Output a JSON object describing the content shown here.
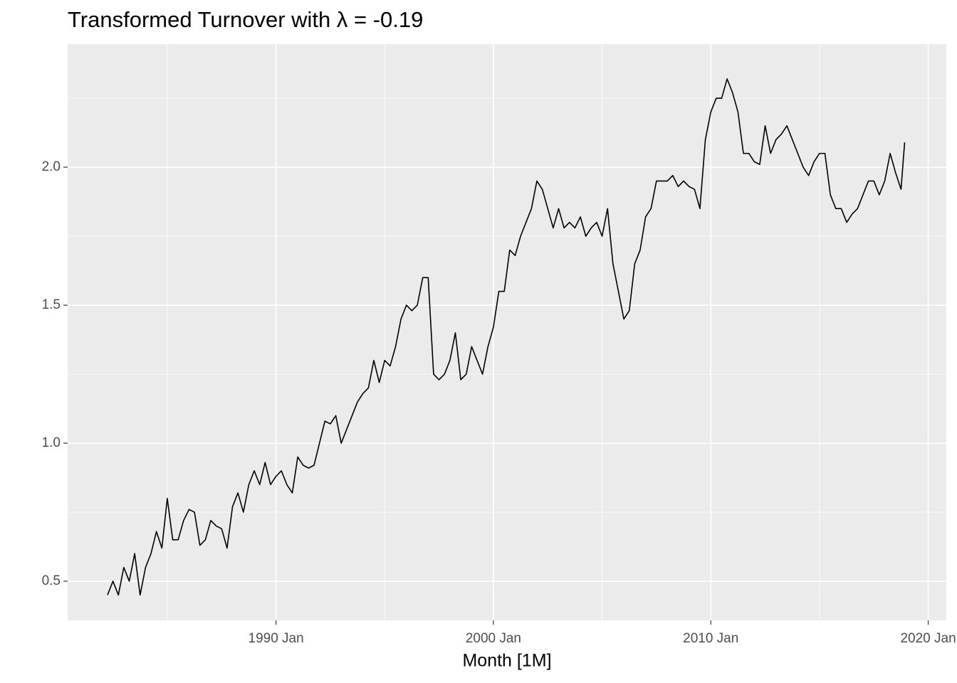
{
  "chart_data": {
    "type": "line",
    "title": "Transformed Turnover with λ = -0.19",
    "x_label": "Month [1M]",
    "x": [
      "1982 Apr",
      "1982 Jul",
      "1982 Oct",
      "1983 Jan",
      "1983 Apr",
      "1983 Jul",
      "1983 Oct",
      "1984 Jan",
      "1984 Apr",
      "1984 Jul",
      "1984 Oct",
      "1985 Jan",
      "1985 Apr",
      "1985 Jul",
      "1985 Oct",
      "1986 Jan",
      "1986 Apr",
      "1986 Jul",
      "1986 Oct",
      "1987 Jan",
      "1987 Apr",
      "1987 Jul",
      "1987 Oct",
      "1988 Jan",
      "1988 Apr",
      "1988 Jul",
      "1988 Oct",
      "1989 Jan",
      "1989 Apr",
      "1989 Jul",
      "1989 Oct",
      "1990 Jan",
      "1990 Apr",
      "1990 Jul",
      "1990 Oct",
      "1991 Jan",
      "1991 Apr",
      "1991 Jul",
      "1991 Oct",
      "1992 Jan",
      "1992 Apr",
      "1992 Jul",
      "1992 Oct",
      "1993 Jan",
      "1993 Apr",
      "1993 Jul",
      "1993 Oct",
      "1994 Jan",
      "1994 Apr",
      "1994 Jul",
      "1994 Oct",
      "1995 Jan",
      "1995 Apr",
      "1995 Jul",
      "1995 Oct",
      "1996 Jan",
      "1996 Apr",
      "1996 Jul",
      "1996 Oct",
      "1997 Jan",
      "1997 Apr",
      "1997 Jul",
      "1997 Oct",
      "1998 Jan",
      "1998 Apr",
      "1998 Jul",
      "1998 Oct",
      "1999 Jan",
      "1999 Apr",
      "1999 Jul",
      "1999 Oct",
      "2000 Jan",
      "2000 Apr",
      "2000 Jul",
      "2000 Oct",
      "2001 Jan",
      "2001 Apr",
      "2001 Jul",
      "2001 Oct",
      "2002 Jan",
      "2002 Apr",
      "2002 Jul",
      "2002 Oct",
      "2003 Jan",
      "2003 Apr",
      "2003 Jul",
      "2003 Oct",
      "2004 Jan",
      "2004 Apr",
      "2004 Jul",
      "2004 Oct",
      "2005 Jan",
      "2005 Apr",
      "2005 Jul",
      "2005 Oct",
      "2006 Jan",
      "2006 Apr",
      "2006 Jul",
      "2006 Oct",
      "2007 Jan",
      "2007 Apr",
      "2007 Jul",
      "2007 Oct",
      "2008 Jan",
      "2008 Apr",
      "2008 Jul",
      "2008 Oct",
      "2009 Jan",
      "2009 Apr",
      "2009 Jul",
      "2009 Oct",
      "2010 Jan",
      "2010 Apr",
      "2010 Jul",
      "2010 Oct",
      "2011 Jan",
      "2011 Apr",
      "2011 Jul",
      "2011 Oct",
      "2012 Jan",
      "2012 Apr",
      "2012 Jul",
      "2012 Oct",
      "2013 Jan",
      "2013 Apr",
      "2013 Jul",
      "2013 Oct",
      "2014 Jan",
      "2014 Apr",
      "2014 Jul",
      "2014 Oct",
      "2015 Jan",
      "2015 Apr",
      "2015 Jul",
      "2015 Oct",
      "2016 Jan",
      "2016 Apr",
      "2016 Jul",
      "2016 Oct",
      "2017 Jan",
      "2017 Apr",
      "2017 Jul",
      "2017 Oct",
      "2018 Jan",
      "2018 Apr",
      "2018 Jul",
      "2018 Oct",
      "2018 Dec"
    ],
    "series": [
      {
        "color": "#000000",
        "values": [
          0.45,
          0.5,
          0.45,
          0.55,
          0.5,
          0.6,
          0.45,
          0.55,
          0.6,
          0.68,
          0.62,
          0.8,
          0.65,
          0.65,
          0.72,
          0.76,
          0.75,
          0.63,
          0.65,
          0.72,
          0.7,
          0.69,
          0.62,
          0.77,
          0.82,
          0.75,
          0.85,
          0.9,
          0.85,
          0.93,
          0.85,
          0.88,
          0.9,
          0.85,
          0.82,
          0.95,
          0.92,
          0.91,
          0.92,
          1.0,
          1.08,
          1.07,
          1.1,
          1.0,
          1.05,
          1.1,
          1.15,
          1.18,
          1.2,
          1.3,
          1.22,
          1.3,
          1.28,
          1.35,
          1.45,
          1.5,
          1.48,
          1.5,
          1.6,
          1.6,
          1.25,
          1.23,
          1.25,
          1.3,
          1.4,
          1.23,
          1.25,
          1.35,
          1.3,
          1.25,
          1.35,
          1.42,
          1.55,
          1.55,
          1.7,
          1.68,
          1.75,
          1.8,
          1.85,
          1.95,
          1.92,
          1.85,
          1.78,
          1.85,
          1.78,
          1.8,
          1.78,
          1.82,
          1.75,
          1.78,
          1.8,
          1.75,
          1.85,
          1.65,
          1.55,
          1.45,
          1.48,
          1.65,
          1.7,
          1.82,
          1.85,
          1.95,
          1.95,
          1.95,
          1.97,
          1.93,
          1.95,
          1.93,
          1.92,
          1.85,
          2.1,
          2.2,
          2.25,
          2.25,
          2.32,
          2.27,
          2.2,
          2.05,
          2.05,
          2.02,
          2.01,
          2.15,
          2.05,
          2.1,
          2.12,
          2.15,
          2.1,
          2.05,
          2.0,
          1.97,
          2.02,
          2.05,
          2.05,
          1.9,
          1.85,
          1.85,
          1.8,
          1.83,
          1.85,
          1.9,
          1.95,
          1.95,
          1.9,
          1.95,
          2.05,
          1.98,
          1.92,
          2.09
        ]
      }
    ],
    "xlim": [
      "1980 Jun",
      "2020 Nov"
    ],
    "xticks": [
      "1990 Jan",
      "2000 Jan",
      "2010 Jan",
      "2020 Jan"
    ],
    "minor_xticks": [
      "1985 Jan",
      "1995 Jan",
      "2005 Jan",
      "2015 Jan"
    ],
    "ylim": [
      0.358,
      2.446
    ],
    "yticks": [
      {
        "value": 0.5,
        "label": "0.5"
      },
      {
        "value": 1,
        "label": "1.0"
      },
      {
        "value": 1.5,
        "label": "1.5"
      },
      {
        "value": 2,
        "label": "2.0"
      }
    ],
    "minor_yticks": [
      0.75,
      1.25,
      1.75,
      2.25
    ],
    "grid": true
  }
}
